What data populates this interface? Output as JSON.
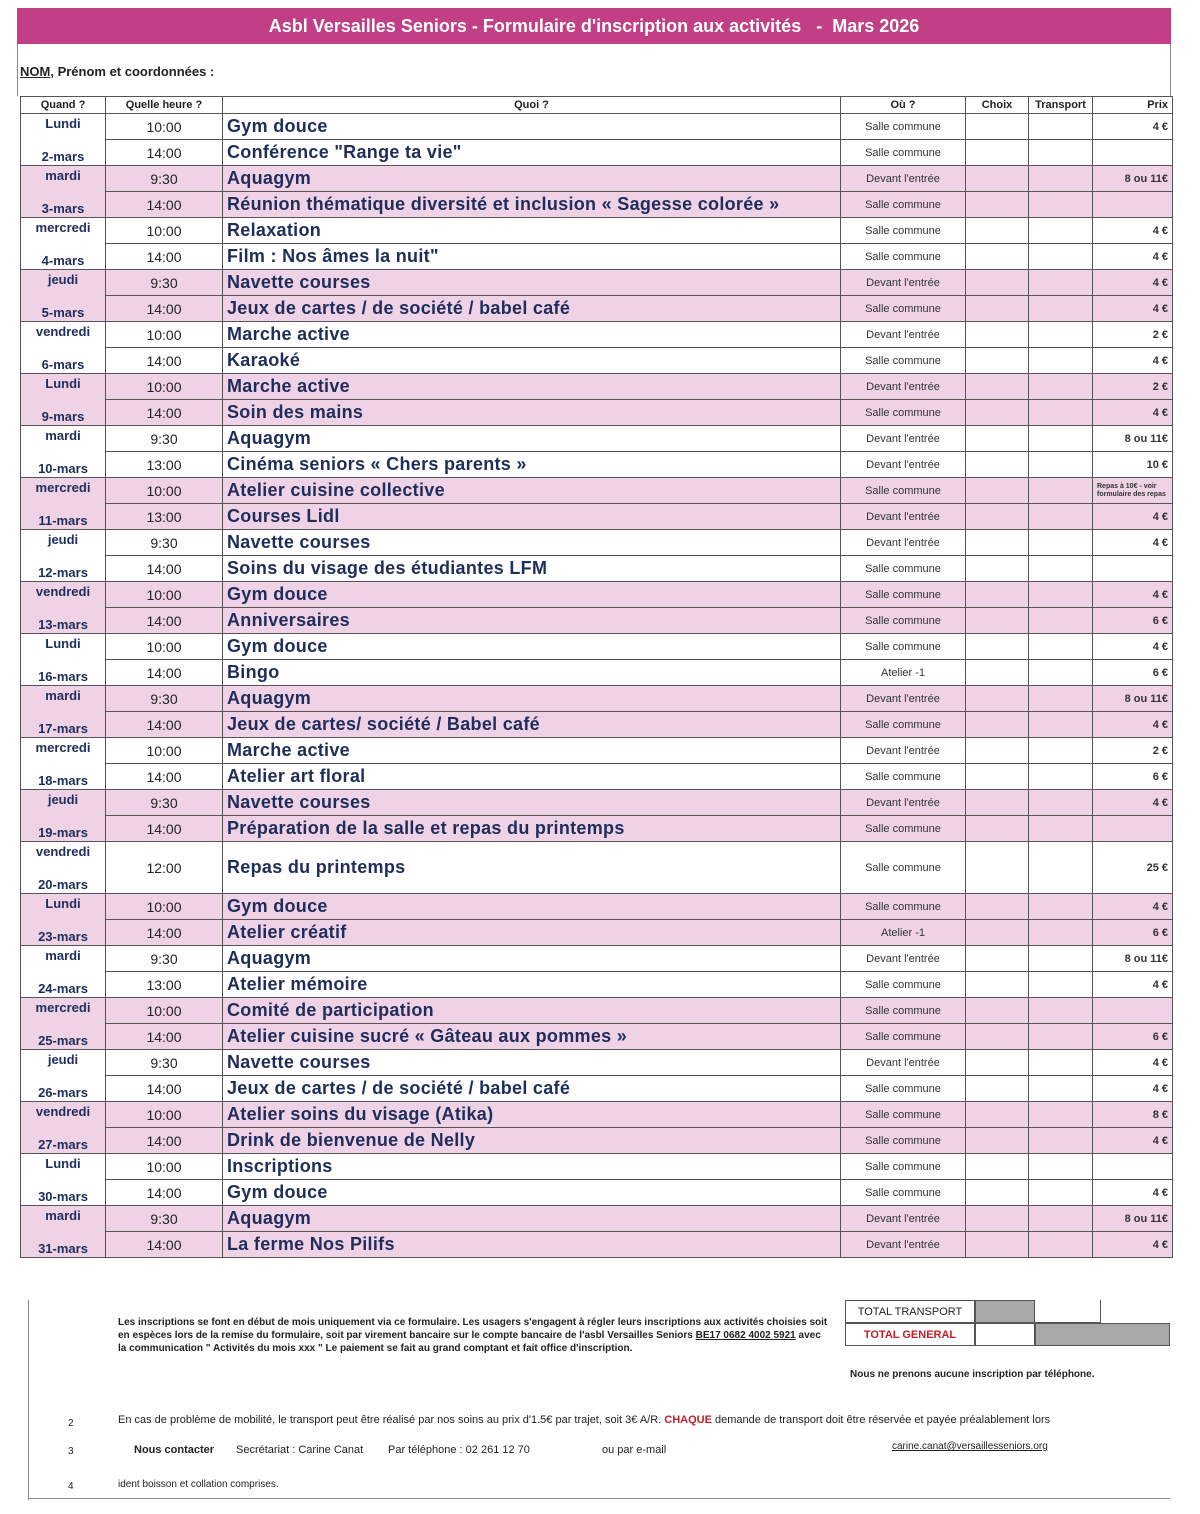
{
  "header": {
    "title": "Asbl Versailles Seniors - Formulaire d'inscription aux activités   -  Mars 2026"
  },
  "form": {
    "label_underlined": "NOM",
    "label_rest": ", Prénom et coordonnées :"
  },
  "table": {
    "columns": [
      "Quand ?",
      "Quelle heure ?",
      "Quoi ?",
      "Où ?",
      "Choix",
      "Transport",
      "Prix"
    ],
    "days": [
      {
        "day": "Lundi",
        "date": "2-mars",
        "rows": [
          {
            "time": "10:00",
            "what": "Gym douce",
            "where": "Salle commune",
            "price": "4 €"
          },
          {
            "time": "14:00",
            "what": "Conférence \"Range ta vie\"",
            "where": "Salle commune"
          }
        ]
      },
      {
        "day": "mardi",
        "date": "3-mars",
        "rows": [
          {
            "time": "9:30",
            "what": "Aquagym",
            "where": "Devant l'entrée",
            "price": "8 ou 11€"
          },
          {
            "time": "14:00",
            "what": "Réunion thématique diversité et inclusion « Sagesse colorée »",
            "where": "Salle commune"
          }
        ]
      },
      {
        "day": "mercredi",
        "date": "4-mars",
        "rows": [
          {
            "time": "10:00",
            "what": "Relaxation",
            "where": "Salle commune",
            "price": "4 €"
          },
          {
            "time": "14:00",
            "what": "Film : Nos âmes la nuit\"",
            "where": "Salle commune",
            "price": "4 €"
          }
        ]
      },
      {
        "day": "jeudi",
        "date": "5-mars",
        "rows": [
          {
            "time": "9:30",
            "what": "Navette courses",
            "where": "Devant l'entrée",
            "price": "4 €"
          },
          {
            "time": "14:00",
            "what": "Jeux de cartes / de société / babel café",
            "where": "Salle commune",
            "price": "4 €"
          }
        ]
      },
      {
        "day": "vendredi",
        "date": "6-mars",
        "rows": [
          {
            "time": "10:00",
            "what": "Marche active",
            "where": "Devant l'entrée",
            "price": "2 €"
          },
          {
            "time": "14:00",
            "what": "Karaoké",
            "where": "Salle commune",
            "price": "4 €"
          }
        ]
      },
      {
        "day": "Lundi",
        "date": "9-mars",
        "rows": [
          {
            "time": "10:00",
            "what": "Marche active",
            "where": "Devant l'entrée",
            "price": "2 €"
          },
          {
            "time": "14:00",
            "what": "Soin des mains",
            "where": "Salle commune",
            "price": "4 €"
          }
        ]
      },
      {
        "day": "mardi",
        "date": "10-mars",
        "rows": [
          {
            "time": "9:30",
            "what": "Aquagym",
            "where": "Devant l'entrée",
            "price": "8 ou 11€"
          },
          {
            "time": "13:00",
            "what": "Cinéma seniors « Chers parents »",
            "where": "Devant l'entrée",
            "price": "10 €"
          }
        ]
      },
      {
        "day": "mercredi",
        "date": "11-mars",
        "rows": [
          {
            "time": "10:00",
            "what": "Atelier cuisine collective",
            "where": "Salle commune",
            "price": "Repas à 10€ - voir formulaire des repas"
          },
          {
            "time": "13:00",
            "what": "Courses Lidl",
            "where": "Devant l'entrée",
            "price": "4 €"
          }
        ]
      },
      {
        "day": "jeudi",
        "date": "12-mars",
        "rows": [
          {
            "time": "9:30",
            "what": "Navette courses",
            "where": "Devant l'entrée",
            "price": "4 €"
          },
          {
            "time": "14:00",
            "what": "Soins du visage des étudiantes LFM",
            "where": "Salle commune"
          }
        ]
      },
      {
        "day": "vendredi",
        "date": "13-mars",
        "rows": [
          {
            "time": "10:00",
            "what": "Gym douce",
            "where": "Salle commune",
            "price": "4 €"
          },
          {
            "time": "14:00",
            "what": "Anniversaires",
            "where": "Salle commune",
            "price": "6 €"
          }
        ]
      },
      {
        "day": "Lundi",
        "date": "16-mars",
        "rows": [
          {
            "time": "10:00",
            "what": "Gym douce",
            "where": "Salle commune",
            "price": "4 €"
          },
          {
            "time": "14:00",
            "what": "Bingo",
            "where": "Atelier -1",
            "price": "6 €"
          }
        ]
      },
      {
        "day": "mardi",
        "date": "17-mars",
        "rows": [
          {
            "time": "9:30",
            "what": "Aquagym",
            "where": "Devant l'entrée",
            "price": "8 ou 11€"
          },
          {
            "time": "14:00",
            "what": "Jeux de cartes/ société / Babel café",
            "where": "Salle commune",
            "price": "4 €"
          }
        ]
      },
      {
        "day": "mercredi",
        "date": "18-mars",
        "rows": [
          {
            "time": "10:00",
            "what": "Marche active",
            "where": "Devant l'entrée",
            "price": "2 €"
          },
          {
            "time": "14:00",
            "what": "Atelier art floral",
            "where": "Salle commune",
            "price": "6 €"
          }
        ]
      },
      {
        "day": "jeudi",
        "date": "19-mars",
        "rows": [
          {
            "time": "9:30",
            "what": "Navette courses",
            "where": "Devant l'entrée",
            "price": "4 €"
          },
          {
            "time": "14:00",
            "what": "Préparation de la salle et repas du printemps",
            "where": "Salle commune"
          }
        ]
      },
      {
        "day": "vendredi",
        "date": "20-mars",
        "rows": [
          {
            "time": "12:00",
            "what": "Repas du printemps",
            "where": "Salle commune",
            "price": "25 €"
          }
        ]
      },
      {
        "day": "Lundi",
        "date": "23-mars",
        "rows": [
          {
            "time": "10:00",
            "what": "Gym douce",
            "where": "Salle commune",
            "price": "4 €"
          },
          {
            "time": "14:00",
            "what": "Atelier créatif",
            "where": "Atelier -1",
            "price": "6 €"
          }
        ]
      },
      {
        "day": "mardi",
        "date": "24-mars",
        "rows": [
          {
            "time": "9:30",
            "what": "Aquagym",
            "where": "Devant l'entrée",
            "price": "8 ou 11€"
          },
          {
            "time": "13:00",
            "what": "Atelier mémoire",
            "where": "Salle commune",
            "price": "4 €"
          }
        ]
      },
      {
        "day": "mercredi",
        "date": "25-mars",
        "rows": [
          {
            "time": "10:00",
            "what": "Comité de participation",
            "where": "Salle commune"
          },
          {
            "time": "14:00",
            "what": "Atelier cuisine sucré « Gâteau aux pommes »",
            "where": "Salle commune",
            "price": "6 €"
          }
        ]
      },
      {
        "day": "jeudi",
        "date": "26-mars",
        "rows": [
          {
            "time": "9:30",
            "what": "Navette courses",
            "where": "Devant l'entrée",
            "price": "4 €"
          },
          {
            "time": "14:00",
            "what": "Jeux de cartes / de société / babel café",
            "where": "Salle commune",
            "price": "4 €"
          }
        ]
      },
      {
        "day": "vendredi",
        "date": "27-mars",
        "rows": [
          {
            "time": "10:00",
            "what": "Atelier soins du visage (Atika)",
            "where": "Salle commune",
            "price": "8 €"
          },
          {
            "time": "14:00",
            "what": "Drink de bienvenue de Nelly",
            "where": "Salle commune",
            "price": "4 €"
          }
        ]
      },
      {
        "day": "Lundi",
        "date": "30-mars",
        "rows": [
          {
            "time": "10:00",
            "what": "Inscriptions",
            "where": "Salle commune"
          },
          {
            "time": "14:00",
            "what": "Gym douce",
            "where": "Salle commune",
            "price": "4 €"
          }
        ]
      },
      {
        "day": "mardi",
        "date": "31-mars",
        "rows": [
          {
            "time": "9:30",
            "what": "Aquagym",
            "where": "Devant l'entrée",
            "price": "8 ou 11€"
          },
          {
            "time": "14:00",
            "what": "La ferme Nos Pilifs",
            "where": "Devant l'entrée",
            "price": "4 €"
          }
        ]
      }
    ]
  },
  "footer": {
    "paragraph": {
      "before": "Les inscriptions se font en début de mois uniquement via ce formulaire. Les usagers s'engagent à régler leurs inscriptions aux activités choisies soit en espèces lors de la remise du formulaire, soit par virement bancaire sur le compte bancaire de l'asbl Versailles Seniors ",
      "account": "BE17 0682 4002 5921",
      "after": " avec la communication \" Activités du mois xxx \" Le paiement se fait au grand comptant et fait office d'inscription."
    },
    "total_transport": "TOTAL TRANSPORT",
    "total_general": "TOTAL GENERAL",
    "no_phone": "Nous ne prenons aucune inscription par téléphone.",
    "notes": [
      {
        "number": "2",
        "text": "En cas de problème de mobilité, le transport peut être réalisé par nos soins au prix d'1.5€ par trajet, soit 3€ A/R. ",
        "emphasis": "CHAQUE",
        "rest": " demande de transport doit être réservée et payée préalablement lors"
      },
      {
        "number": "3",
        "contact": "Nous contacter",
        "secretary": "Secrétariat : Carine Canat",
        "phone": "Par téléphone : 02 261 12 70",
        "email_label": "ou par e-mail",
        "email": "carine.canat@versaillesseniors.org"
      },
      {
        "number": "4",
        "text": "ident boisson et collation comprises."
      }
    ]
  }
}
